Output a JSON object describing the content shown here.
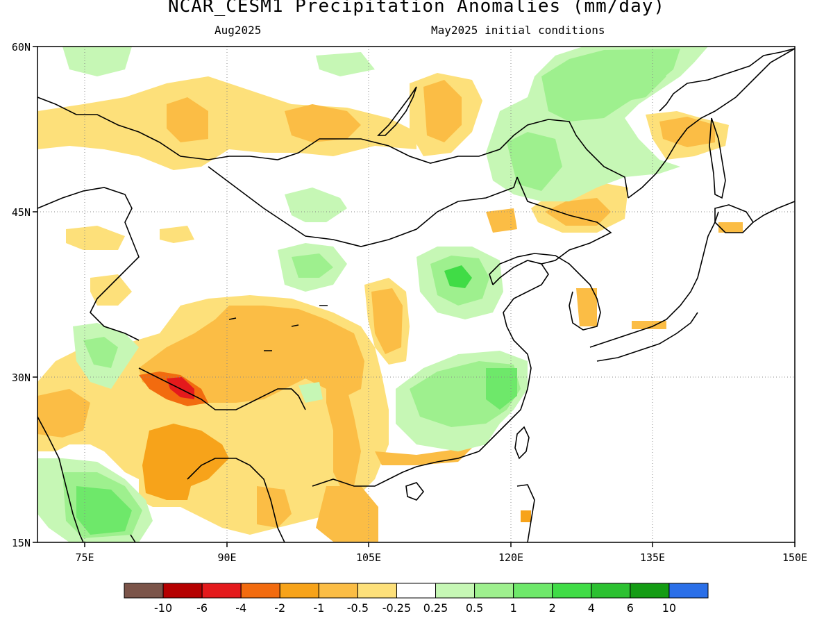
{
  "title": "NCAR_CESM1 Precipitation Anomalies (mm/day)",
  "subtitle_left": "Aug2025",
  "subtitle_right": "May2025 initial conditions",
  "map": {
    "lon_range": [
      70,
      150
    ],
    "lat_range": [
      15,
      60
    ],
    "lon_ticks": [
      "75E",
      "90E",
      "105E",
      "120E",
      "135E",
      "150E"
    ],
    "lat_ticks": [
      "60N",
      "45N",
      "30N",
      "15N"
    ],
    "grid_lines": "dotted",
    "colors": {
      "brown": "#7b5449",
      "dark_red": "#b50000",
      "red": "#e41a1c",
      "dark_orange": "#f26b0f",
      "orange": "#f7a31a",
      "light_orange": "#fbbd45",
      "pale_yellow": "#fde07a",
      "white": "#ffffff",
      "pale_green": "#c6f7b5",
      "light_green": "#9ef08e",
      "green": "#6ee86a",
      "medium_green": "#40dc46",
      "dark_green": "#2cc131",
      "deep_green": "#149c14",
      "blue": "#2a6fe8"
    }
  },
  "colorbar": {
    "labels": [
      "-10",
      "-6",
      "-4",
      "-2",
      "-1",
      "-0.5",
      "-0.25",
      "0.25",
      "0.5",
      "1",
      "2",
      "4",
      "6",
      "10"
    ],
    "colors": [
      "#7b5449",
      "#b50000",
      "#e41a1c",
      "#f26b0f",
      "#f7a31a",
      "#fbbd45",
      "#fde07a",
      "#ffffff",
      "#c6f7b5",
      "#9ef08e",
      "#6ee86a",
      "#40dc46",
      "#2cc131",
      "#149c14",
      "#2a6fe8"
    ]
  }
}
